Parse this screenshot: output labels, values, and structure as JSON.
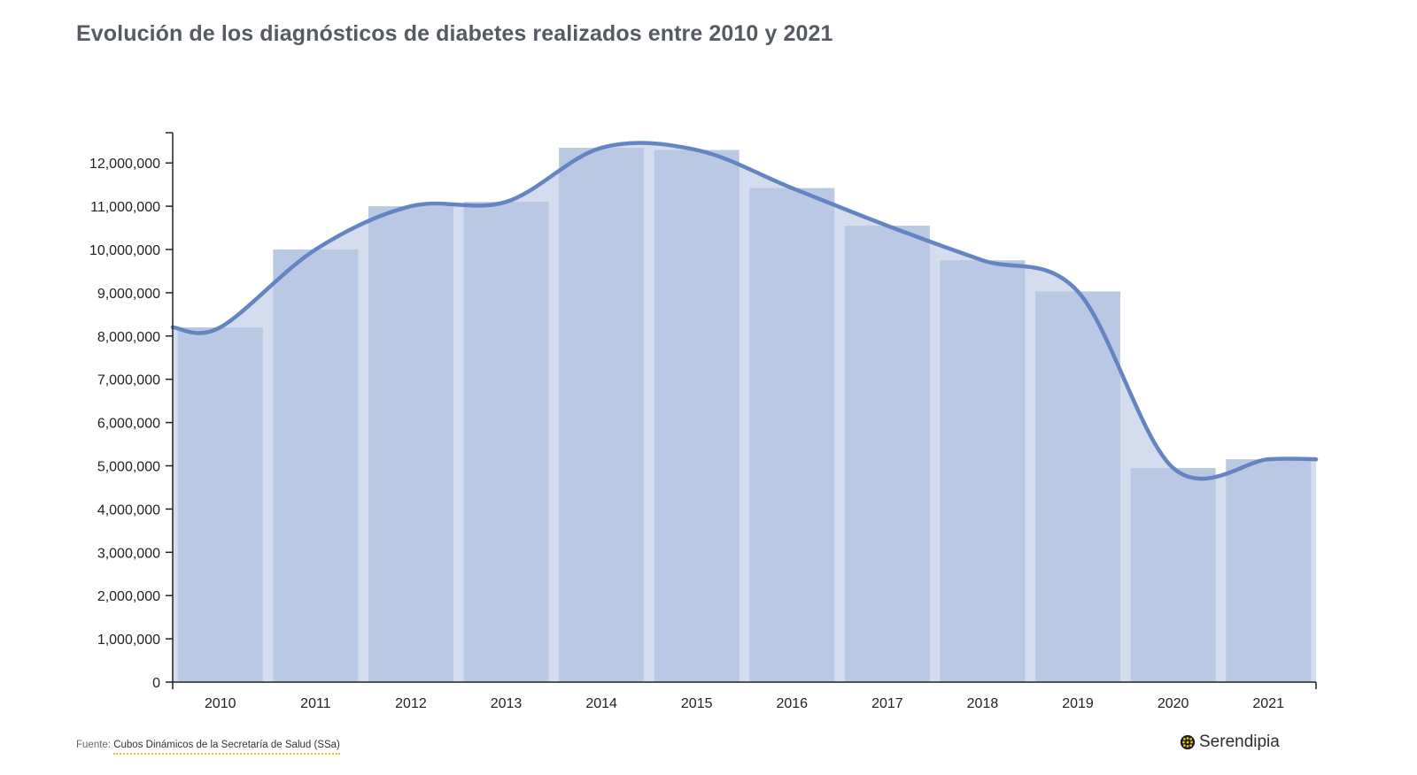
{
  "title": "Evolución de los diagnósticos de diabetes realizados entre 2010 y 2021",
  "footer": {
    "prefix": "Fuente:",
    "source": "Cubos Dinámicos de la Secretaría de Salud (SSa)"
  },
  "brand": {
    "name": "Serendipia",
    "icon": "globe-logo-icon"
  },
  "colors": {
    "bar": "#b9c8e3",
    "area": "#d3ddee",
    "line": "#6585c2",
    "axis": "#222222",
    "accent": "#e6c12a"
  },
  "chart_data": {
    "type": "bar",
    "categories": [
      "2010",
      "2011",
      "2012",
      "2013",
      "2014",
      "2015",
      "2016",
      "2017",
      "2018",
      "2019",
      "2020",
      "2021"
    ],
    "values": [
      8200000,
      10000000,
      11000000,
      11100000,
      12350000,
      12300000,
      11420000,
      10550000,
      9750000,
      9030000,
      4950000,
      5150000
    ],
    "trend_line": {
      "type": "line",
      "smooth": true,
      "values": [
        8200000,
        10000000,
        11000000,
        11100000,
        12350000,
        12300000,
        11420000,
        10550000,
        9750000,
        9030000,
        4950000,
        5150000
      ]
    },
    "yticks": [
      "0",
      "1,000,000",
      "2,000,000",
      "3,000,000",
      "4,000,000",
      "5,000,000",
      "6,000,000",
      "7,000,000",
      "8,000,000",
      "9,000,000",
      "10,000,000",
      "11,000,000",
      "12,000,000"
    ],
    "ylim": [
      0,
      12350000
    ],
    "grid": false,
    "legend": "none"
  }
}
